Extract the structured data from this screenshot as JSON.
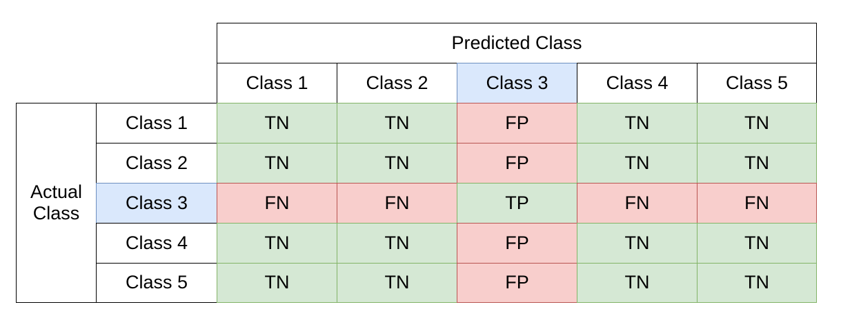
{
  "predicted_label": "Predicted Class",
  "actual_label": "Actual\nClass",
  "highlight_index": 2,
  "columns": [
    "Class 1",
    "Class 2",
    "Class 3",
    "Class 4",
    "Class 5"
  ],
  "rows": [
    {
      "label": "Class 1",
      "cells": [
        "TN",
        "TN",
        "FP",
        "TN",
        "TN"
      ]
    },
    {
      "label": "Class 2",
      "cells": [
        "TN",
        "TN",
        "FP",
        "TN",
        "TN"
      ]
    },
    {
      "label": "Class 3",
      "cells": [
        "FN",
        "FN",
        "TP",
        "FN",
        "FN"
      ]
    },
    {
      "label": "Class 4",
      "cells": [
        "TN",
        "TN",
        "FP",
        "TN",
        "TN"
      ]
    },
    {
      "label": "Class 5",
      "cells": [
        "TN",
        "TN",
        "FP",
        "TN",
        "TN"
      ]
    }
  ],
  "colors": {
    "green_fill": "#d5e8d4",
    "green_border": "#82b366",
    "red_fill": "#f8cecc",
    "red_border": "#b85450",
    "blue_fill": "#dae8fc",
    "blue_border": "#6c8ebf"
  }
}
